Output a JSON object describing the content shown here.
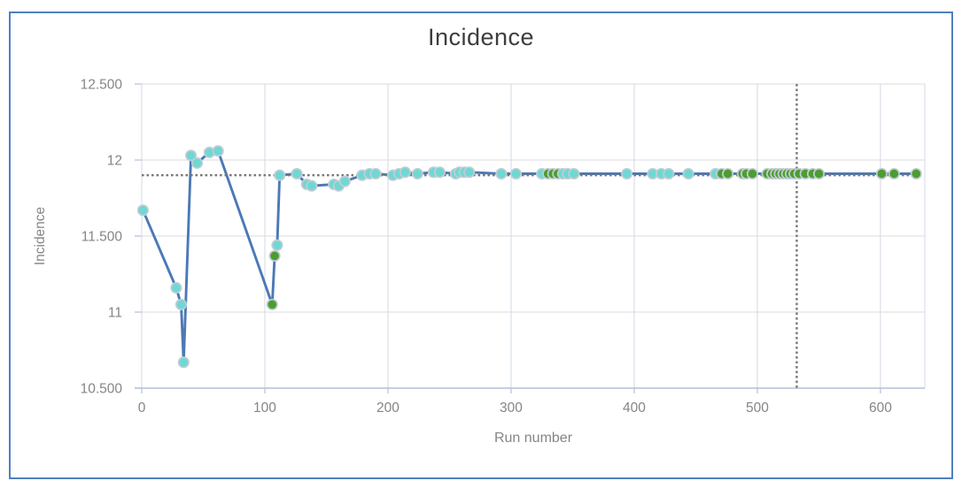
{
  "window": {
    "background": "#ffffff",
    "border_color": "#4f81bd"
  },
  "chart_data": {
    "type": "line",
    "title": "Incidence",
    "xlabel": "Run number",
    "ylabel": "Incidence",
    "xlim": [
      0,
      636
    ],
    "ylim": [
      10.5,
      12.5
    ],
    "grid": true,
    "legend_position": "none",
    "x_ticks": [
      {
        "value": 0,
        "label": "0"
      },
      {
        "value": 100,
        "label": "100"
      },
      {
        "value": 200,
        "label": "200"
      },
      {
        "value": 300,
        "label": "300"
      },
      {
        "value": 400,
        "label": "400"
      },
      {
        "value": 500,
        "label": "500"
      },
      {
        "value": 600,
        "label": "600"
      }
    ],
    "y_ticks": [
      {
        "value": 12.5,
        "label": "12.500"
      },
      {
        "value": 12,
        "label": "12"
      },
      {
        "value": 11.5,
        "label": "11.500"
      },
      {
        "value": 11,
        "label": "11"
      },
      {
        "value": 10.5,
        "label": "10.500"
      }
    ],
    "reference_lines": {
      "horizontal_target_value": 11.9,
      "vertical_run_marker": 532,
      "style": "dotted"
    },
    "series": [
      {
        "name": "Incidence",
        "draw": "line+markers",
        "points": [
          [
            1,
            11.67,
            "cyan"
          ],
          [
            28,
            11.16,
            "cyan"
          ],
          [
            32,
            11.05,
            "cyan"
          ],
          [
            34,
            10.67,
            "cyan"
          ],
          [
            40,
            12.03,
            "cyan"
          ],
          [
            45,
            11.98,
            "cyan"
          ],
          [
            55,
            12.05,
            "cyan"
          ],
          [
            62,
            12.06,
            "cyan"
          ],
          [
            106,
            11.05,
            "green"
          ],
          [
            108,
            11.37,
            "green"
          ],
          [
            110,
            11.44,
            "cyan"
          ],
          [
            112,
            11.9,
            "cyan"
          ],
          [
            126,
            11.91,
            "cyan"
          ],
          [
            134,
            11.84,
            "cyan"
          ],
          [
            138,
            11.83,
            "cyan"
          ],
          [
            156,
            11.84,
            "cyan"
          ],
          [
            160,
            11.83,
            "cyan"
          ],
          [
            165,
            11.86,
            "cyan"
          ],
          [
            179,
            11.9,
            "cyan"
          ],
          [
            185,
            11.91,
            "cyan"
          ],
          [
            190,
            11.91,
            "cyan"
          ],
          [
            204,
            11.9,
            "cyan"
          ],
          [
            209,
            11.91,
            "cyan"
          ],
          [
            214,
            11.92,
            "cyan"
          ],
          [
            224,
            11.91,
            "cyan"
          ],
          [
            237,
            11.92,
            "cyan"
          ],
          [
            242,
            11.92,
            "cyan"
          ],
          [
            255,
            11.91,
            "cyan"
          ],
          [
            258,
            11.92,
            "cyan"
          ],
          [
            262,
            11.92,
            "cyan"
          ],
          [
            266,
            11.92,
            "cyan"
          ],
          [
            292,
            11.91,
            "cyan"
          ],
          [
            304,
            11.91,
            "cyan"
          ],
          [
            325,
            11.91,
            "cyan"
          ],
          [
            330,
            11.91,
            "green"
          ],
          [
            334,
            11.91,
            "green"
          ],
          [
            338,
            11.91,
            "green"
          ],
          [
            342,
            11.91,
            "cyan"
          ],
          [
            346,
            11.91,
            "cyan"
          ],
          [
            351,
            11.91,
            "cyan"
          ],
          [
            394,
            11.91,
            "cyan"
          ],
          [
            415,
            11.91,
            "cyan"
          ],
          [
            422,
            11.91,
            "cyan"
          ],
          [
            428,
            11.91,
            "cyan"
          ],
          [
            444,
            11.91,
            "cyan"
          ],
          [
            466,
            11.91,
            "cyan"
          ],
          [
            471,
            11.91,
            "green"
          ],
          [
            476,
            11.91,
            "green"
          ],
          [
            488,
            11.91,
            "green"
          ],
          [
            491,
            11.91,
            "green"
          ],
          [
            496,
            11.91,
            "green"
          ],
          [
            508,
            11.91,
            "green"
          ],
          [
            512,
            11.91,
            "green"
          ],
          [
            515,
            11.91,
            "green"
          ],
          [
            518,
            11.91,
            "green"
          ],
          [
            521,
            11.91,
            "green"
          ],
          [
            524,
            11.91,
            "green"
          ],
          [
            527,
            11.91,
            "green"
          ],
          [
            530,
            11.91,
            "green"
          ],
          [
            534,
            11.91,
            "green"
          ],
          [
            539,
            11.91,
            "green"
          ],
          [
            545,
            11.91,
            "green"
          ],
          [
            550,
            11.91,
            "green"
          ],
          [
            601,
            11.91,
            "green"
          ],
          [
            611,
            11.91,
            "green"
          ],
          [
            629,
            11.91,
            "green"
          ]
        ]
      }
    ],
    "colors": {
      "line": "#4b79b6",
      "marker_cyan": "#6ed8d3",
      "marker_green": "#4c9d31",
      "marker_stroke": "#c2ccd4",
      "reference_dotted": "#787878",
      "grid_horizontal": "#dbdbdb",
      "grid_vertical": "#d3d9e4",
      "axis_line": "#b3bfd9",
      "title_text": "#3d3d3d",
      "tick_text": "#858585"
    }
  }
}
